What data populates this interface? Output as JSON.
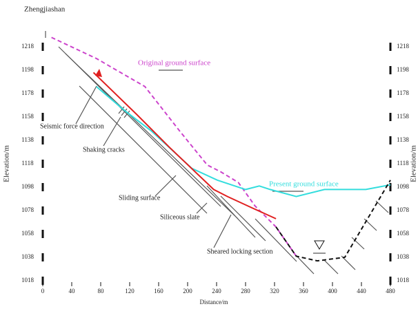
{
  "chart_data": {
    "type": "line",
    "title": "Zhengjiashan",
    "x_label": "Distance/m",
    "y_label": "Elevation/m",
    "xlim": [
      0,
      480
    ],
    "xticks": [
      0,
      40,
      80,
      120,
      160,
      200,
      240,
      280,
      320,
      360,
      400,
      440,
      480
    ],
    "ylim": [
      1018,
      1218
    ],
    "yticks": [
      1018,
      1038,
      1058,
      1078,
      1098,
      1118,
      1138,
      1158,
      1178,
      1198,
      1218
    ],
    "series": [
      {
        "name": "Original ground surface",
        "color": "#cc44cc",
        "dashed": true,
        "x": [
          12,
          74,
          141,
          189,
          227,
          246,
          270,
          293,
          322,
          350
        ],
        "values": [
          1226,
          1208,
          1184,
          1146,
          1117,
          1111,
          1102,
          1082,
          1064,
          1039
        ]
      },
      {
        "name": "Present ground surface",
        "color": "#33dddd",
        "dashed": false,
        "x": [
          74,
          112,
          150,
          206,
          241,
          280,
          299,
          314,
          350,
          389,
          446,
          480
        ],
        "values": [
          1184,
          1164,
          1146,
          1114,
          1104,
          1096,
          1099,
          1096,
          1090,
          1096,
          1096,
          1100
        ]
      },
      {
        "color": "#111111",
        "dashed": true,
        "x": [
          322,
          350,
          379,
          417,
          480
        ],
        "values": [
          1064,
          1039,
          1035,
          1038,
          1104
        ]
      },
      {
        "color": "#e02020",
        "dashed": false,
        "x": [
          70,
          130,
          175,
          236,
          255,
          290,
          322
        ],
        "values": [
          1196,
          1160,
          1132,
          1096,
          1090,
          1080,
          1071
        ]
      }
    ],
    "annotations": [
      "Seismic force direction",
      "Shaking cracks",
      "Sliding surface",
      "Siliceous slate",
      "Sheared locking section"
    ]
  }
}
